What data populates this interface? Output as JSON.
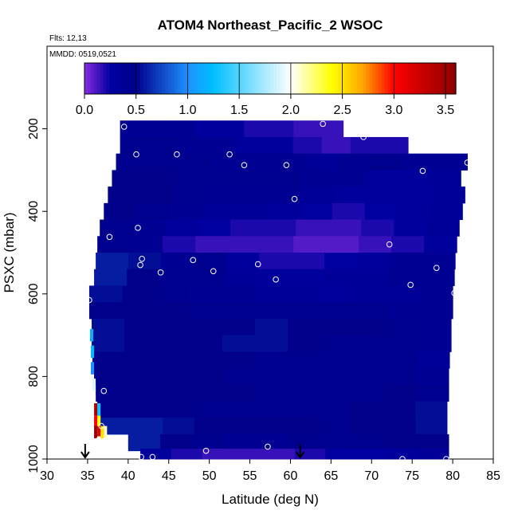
{
  "chart_data": {
    "type": "heatmap",
    "title": "ATOM4 Northeast_Pacific_2 WSOC",
    "flights_label": "Flts: 12,13",
    "dates_label": "MMDD: 0519,0521",
    "xlabel": "Latitude (deg N)",
    "ylabel": "PSXC (mbar)",
    "xlim": [
      30,
      85
    ],
    "ylim": [
      1000,
      0
    ],
    "xticks": [
      "30",
      "35",
      "40",
      "45",
      "50",
      "55",
      "60",
      "65",
      "70",
      "75",
      "80",
      "85"
    ],
    "yticks": [
      "200",
      "400",
      "600",
      "800",
      "1000"
    ],
    "colorbar": {
      "range": [
        0.0,
        3.6
      ],
      "ticks": [
        "0.0",
        "0.5",
        "1.0",
        "1.5",
        "2.0",
        "2.5",
        "3.0",
        "3.5"
      ],
      "colors": [
        "#8a2be2",
        "#0000a0",
        "#00008b",
        "#1e90ff",
        "#00bfff",
        "#ffffff",
        "#ffff00",
        "#ffa500",
        "#ff0000",
        "#8b0000"
      ]
    },
    "layers": [
      {
        "p": 200,
        "lat_min": 39.0,
        "lat_max": 66.5,
        "values": [
          0.4,
          0.4,
          0.4,
          0.3,
          0.3,
          0.2,
          0.2,
          0.15,
          0.15
        ]
      },
      {
        "p": 240,
        "lat_min": 39.0,
        "lat_max": 74.5,
        "values": [
          0.45,
          0.45,
          0.4,
          0.4,
          0.3,
          0.3,
          0.2,
          0.15,
          0.2,
          0.2
        ]
      },
      {
        "p": 280,
        "lat_min": 38.5,
        "lat_max": 81.8,
        "values": [
          0.45,
          0.45,
          0.45,
          0.4,
          0.4,
          0.4,
          0.35,
          0.4,
          0.45,
          0.4,
          0.4
        ]
      },
      {
        "p": 320,
        "lat_min": 38.0,
        "lat_max": 81.0,
        "values": [
          0.5,
          0.5,
          0.45,
          0.45,
          0.45,
          0.45,
          0.4,
          0.4,
          0.3,
          0.3,
          0.35
        ]
      },
      {
        "p": 360,
        "lat_min": 37.5,
        "lat_max": 81.5,
        "values": [
          0.5,
          0.5,
          0.45,
          0.4,
          0.4,
          0.4,
          0.35,
          0.3,
          0.3,
          0.3,
          0.35
        ]
      },
      {
        "p": 400,
        "lat_min": 37.0,
        "lat_max": 81.2,
        "values": [
          0.5,
          0.45,
          0.4,
          0.35,
          0.35,
          0.3,
          0.25,
          0.2,
          0.25,
          0.3,
          0.35
        ]
      },
      {
        "p": 440,
        "lat_min": 36.5,
        "lat_max": 80.8,
        "values": [
          0.45,
          0.4,
          0.3,
          0.25,
          0.2,
          0.2,
          0.15,
          0.15,
          0.2,
          0.3,
          0.35
        ]
      },
      {
        "p": 480,
        "lat_min": 36.2,
        "lat_max": 80.5,
        "values": [
          0.45,
          0.4,
          0.2,
          0.15,
          0.15,
          0.15,
          0.1,
          0.1,
          0.15,
          0.2,
          0.3
        ]
      },
      {
        "p": 520,
        "lat_min": 36.0,
        "lat_max": 80.3,
        "values": [
          0.6,
          0.55,
          0.4,
          0.45,
          0.3,
          0.2,
          0.2,
          0.25,
          0.3,
          0.4,
          0.4
        ]
      },
      {
        "p": 560,
        "lat_min": 35.8,
        "lat_max": 80.2,
        "values": [
          0.6,
          0.5,
          0.45,
          0.45,
          0.35,
          0.3,
          0.3,
          0.35,
          0.35,
          0.4,
          0.4
        ]
      },
      {
        "p": 600,
        "lat_min": 35.2,
        "lat_max": 80.0,
        "values": [
          0.55,
          0.5,
          0.45,
          0.4,
          0.4,
          0.35,
          0.35,
          0.3,
          0.35,
          0.35,
          0.4
        ]
      },
      {
        "p": 640,
        "lat_min": 35.2,
        "lat_max": 80.0,
        "values": [
          0.5,
          0.5,
          0.5,
          0.45,
          0.45,
          0.45,
          0.45,
          0.45,
          0.45,
          0.4,
          0.4
        ]
      },
      {
        "p": 680,
        "lat_min": 35.5,
        "lat_max": 79.8,
        "values": [
          0.55,
          0.5,
          0.5,
          0.5,
          0.5,
          0.55,
          0.5,
          0.5,
          0.5,
          0.45,
          0.4
        ]
      },
      {
        "p": 720,
        "lat_min": 35.5,
        "lat_max": 79.8,
        "values": [
          0.55,
          0.5,
          0.5,
          0.5,
          0.55,
          0.55,
          0.5,
          0.45,
          0.45,
          0.45,
          0.4
        ]
      },
      {
        "p": 760,
        "lat_min": 35.6,
        "lat_max": 79.6,
        "values": [
          0.5,
          0.5,
          0.5,
          0.5,
          0.5,
          0.45,
          0.45,
          0.45,
          0.45,
          0.45,
          0.35
        ]
      },
      {
        "p": 800,
        "lat_min": 35.8,
        "lat_max": 79.5,
        "values": [
          0.5,
          0.5,
          0.5,
          0.5,
          0.45,
          0.45,
          0.45,
          0.45,
          0.45,
          0.45,
          0.4
        ]
      },
      {
        "p": 840,
        "lat_min": 36.0,
        "lat_max": 79.5,
        "values": [
          0.5,
          0.5,
          0.5,
          0.5,
          0.5,
          0.45,
          0.45,
          0.45,
          0.45,
          0.5,
          0.45
        ]
      },
      {
        "p": 880,
        "lat_min": 36.2,
        "lat_max": 79.3,
        "values": [
          0.5,
          0.5,
          0.5,
          0.45,
          0.45,
          0.45,
          0.45,
          0.45,
          0.5,
          0.5,
          0.55
        ]
      },
      {
        "p": 920,
        "lat_min": 36.5,
        "lat_max": 79.3,
        "values": [
          0.6,
          0.6,
          0.55,
          0.5,
          0.5,
          0.5,
          0.5,
          0.45,
          0.5,
          0.5,
          0.55
        ]
      },
      {
        "p": 960,
        "lat_min": 40.0,
        "lat_max": 79.5,
        "values": [
          0.6,
          0.5,
          0.45,
          0.4,
          0.4,
          0.45,
          0.45,
          0.45,
          0.5,
          0.5
        ]
      },
      {
        "p": 995,
        "lat_min": 41.5,
        "lat_max": 79.5,
        "values": [
          0.3,
          0.2,
          0.15,
          0.15,
          0.15,
          0.2,
          0.25,
          0.25,
          0.3,
          0.35
        ]
      }
    ],
    "edge_cells": [
      {
        "lat": 35.5,
        "p": 700,
        "value": 1.15
      },
      {
        "lat": 35.6,
        "p": 740,
        "value": 1.2
      },
      {
        "lat": 35.6,
        "p": 780,
        "value": 1.0
      },
      {
        "lat": 35.8,
        "p": 820,
        "value": 1.9
      },
      {
        "lat": 35.8,
        "p": 860,
        "value": 2.0
      },
      {
        "lat": 36.0,
        "p": 880,
        "value": 3.4
      },
      {
        "lat": 36.4,
        "p": 880,
        "value": 1.3
      },
      {
        "lat": 36.0,
        "p": 910,
        "value": 3.0
      },
      {
        "lat": 36.4,
        "p": 910,
        "value": 2.4
      },
      {
        "lat": 36.0,
        "p": 935,
        "value": 3.55
      },
      {
        "lat": 36.4,
        "p": 935,
        "value": 3.2
      },
      {
        "lat": 36.8,
        "p": 935,
        "value": 2.5
      },
      {
        "lat": 37.2,
        "p": 935,
        "value": 2.1
      },
      {
        "lat": 36.4,
        "p": 960,
        "value": 2.0
      }
    ],
    "points": [
      {
        "lat": 39.5,
        "p": 195
      },
      {
        "lat": 64.0,
        "p": 188
      },
      {
        "lat": 67.0,
        "p": 188
      },
      {
        "lat": 69.0,
        "p": 220
      },
      {
        "lat": 41.0,
        "p": 262
      },
      {
        "lat": 46.0,
        "p": 262
      },
      {
        "lat": 52.5,
        "p": 262
      },
      {
        "lat": 54.3,
        "p": 288
      },
      {
        "lat": 59.5,
        "p": 288
      },
      {
        "lat": 76.3,
        "p": 302
      },
      {
        "lat": 81.8,
        "p": 282
      },
      {
        "lat": 60.5,
        "p": 370
      },
      {
        "lat": 41.2,
        "p": 440
      },
      {
        "lat": 37.7,
        "p": 462
      },
      {
        "lat": 72.2,
        "p": 480
      },
      {
        "lat": 41.7,
        "p": 515
      },
      {
        "lat": 41.5,
        "p": 530
      },
      {
        "lat": 44.0,
        "p": 548
      },
      {
        "lat": 48.0,
        "p": 518
      },
      {
        "lat": 50.5,
        "p": 545
      },
      {
        "lat": 56.0,
        "p": 528
      },
      {
        "lat": 58.2,
        "p": 565
      },
      {
        "lat": 78.0,
        "p": 537
      },
      {
        "lat": 74.8,
        "p": 578
      },
      {
        "lat": 80.2,
        "p": 598
      },
      {
        "lat": 35.2,
        "p": 615
      },
      {
        "lat": 37.0,
        "p": 835
      },
      {
        "lat": 36.7,
        "p": 920
      },
      {
        "lat": 36.3,
        "p": 955
      },
      {
        "lat": 41.6,
        "p": 995
      },
      {
        "lat": 43.0,
        "p": 995
      },
      {
        "lat": 49.6,
        "p": 980
      },
      {
        "lat": 57.2,
        "p": 970
      },
      {
        "lat": 73.8,
        "p": 1000
      },
      {
        "lat": 79.2,
        "p": 1000
      }
    ],
    "markers": [
      {
        "lat": 34.7
      },
      {
        "lat": 61.2
      }
    ]
  }
}
